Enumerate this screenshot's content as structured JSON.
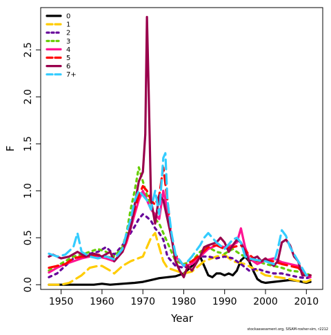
{
  "chart_data": {
    "type": "line",
    "title": "",
    "xlabel": "Year",
    "ylabel": "F",
    "xlim": [
      1945,
      2014
    ],
    "ylim": [
      -0.05,
      2.95
    ],
    "xticks": [
      1950,
      1960,
      1970,
      1980,
      1990,
      2000,
      2010
    ],
    "yticks": [
      0.0,
      0.5,
      1.0,
      1.5,
      2.0,
      2.5
    ],
    "ytick_labels": [
      "0.0",
      "0.5",
      "1.0",
      "1.5",
      "2.0",
      "2.5"
    ],
    "legend_position": "top-left",
    "grid": false,
    "series": [
      {
        "name": "0",
        "color": "#000000",
        "dash": "solid",
        "x": [
          1947,
          1950,
          1955,
          1958,
          1960,
          1962,
          1965,
          1968,
          1970,
          1972,
          1974,
          1976,
          1978,
          1980,
          1982,
          1984,
          1985,
          1986,
          1987,
          1988,
          1989,
          1990,
          1991,
          1992,
          1993,
          1994,
          1995,
          1996,
          1997,
          1998,
          1999,
          2000,
          2002,
          2004,
          2006,
          2008,
          2010,
          2011
        ],
        "y": [
          0.0,
          0.0,
          0.0,
          0.0,
          0.01,
          0.0,
          0.01,
          0.02,
          0.03,
          0.05,
          0.07,
          0.08,
          0.09,
          0.12,
          0.2,
          0.3,
          0.2,
          0.1,
          0.08,
          0.12,
          0.12,
          0.1,
          0.12,
          0.1,
          0.15,
          0.26,
          0.3,
          0.25,
          0.15,
          0.06,
          0.03,
          0.02,
          0.03,
          0.04,
          0.05,
          0.04,
          0.02,
          0.03
        ]
      },
      {
        "name": "1",
        "color": "#ffcc00",
        "dash": "dashed",
        "x": [
          1947,
          1950,
          1952,
          1955,
          1957,
          1959,
          1960,
          1962,
          1963,
          1965,
          1967,
          1970,
          1972,
          1973,
          1974,
          1975,
          1976,
          1978,
          1980,
          1982,
          1985,
          1988,
          1990,
          1992,
          1995,
          1998,
          2000,
          2003,
          2006,
          2008,
          2010,
          2011
        ],
        "y": [
          0.0,
          0.0,
          0.02,
          0.1,
          0.18,
          0.2,
          0.2,
          0.15,
          0.12,
          0.2,
          0.25,
          0.3,
          0.5,
          0.55,
          0.4,
          0.25,
          0.18,
          0.15,
          0.12,
          0.14,
          0.25,
          0.3,
          0.32,
          0.25,
          0.22,
          0.15,
          0.1,
          0.08,
          0.06,
          0.04,
          0.03,
          0.05
        ]
      },
      {
        "name": "2",
        "color": "#660099",
        "dash": "dotted",
        "x": [
          1947,
          1949,
          1951,
          1953,
          1955,
          1957,
          1959,
          1961,
          1963,
          1965,
          1967,
          1968,
          1969,
          1970,
          1971,
          1972,
          1973,
          1974,
          1975,
          1976,
          1977,
          1978,
          1980,
          1982,
          1984,
          1986,
          1988,
          1990,
          1992,
          1994,
          1996,
          1998,
          2000,
          2002,
          2004,
          2006,
          2008,
          2010,
          2011
        ],
        "y": [
          0.08,
          0.12,
          0.2,
          0.28,
          0.3,
          0.33,
          0.35,
          0.4,
          0.32,
          0.42,
          0.55,
          0.62,
          0.7,
          0.75,
          0.72,
          0.68,
          0.6,
          0.55,
          0.48,
          0.3,
          0.25,
          0.2,
          0.18,
          0.22,
          0.3,
          0.3,
          0.28,
          0.3,
          0.28,
          0.22,
          0.15,
          0.17,
          0.14,
          0.12,
          0.12,
          0.1,
          0.08,
          0.07,
          0.08
        ]
      },
      {
        "name": "3",
        "color": "#66cc00",
        "dash": "dotted",
        "x": [
          1947,
          1949,
          1951,
          1953,
          1955,
          1957,
          1959,
          1961,
          1963,
          1965,
          1966,
          1967,
          1968,
          1969,
          1970,
          1971,
          1972,
          1973,
          1974,
          1975,
          1976,
          1977,
          1978,
          1980,
          1982,
          1984,
          1986,
          1988,
          1990,
          1992,
          1994,
          1996,
          1998,
          2000,
          2002,
          2004,
          2006,
          2008,
          2010,
          2011
        ],
        "y": [
          0.15,
          0.2,
          0.25,
          0.3,
          0.32,
          0.35,
          0.38,
          0.35,
          0.3,
          0.4,
          0.55,
          0.8,
          1.0,
          1.25,
          1.1,
          0.95,
          0.85,
          0.7,
          0.65,
          0.55,
          0.45,
          0.35,
          0.25,
          0.22,
          0.25,
          0.35,
          0.4,
          0.35,
          0.33,
          0.38,
          0.32,
          0.28,
          0.25,
          0.22,
          0.2,
          0.18,
          0.15,
          0.14,
          0.12,
          0.1
        ]
      },
      {
        "name": "4",
        "color": "#ff1493",
        "dash": "solid",
        "x": [
          1947,
          1949,
          1951,
          1953,
          1955,
          1957,
          1959,
          1961,
          1963,
          1965,
          1966,
          1967,
          1968,
          1969,
          1970,
          1971,
          1972,
          1973,
          1974,
          1975,
          1976,
          1977,
          1978,
          1980,
          1982,
          1984,
          1986,
          1988,
          1990,
          1992,
          1993,
          1994,
          1995,
          1996,
          1998,
          2000,
          2002,
          2004,
          2006,
          2008,
          2009,
          2010,
          2011
        ],
        "y": [
          0.13,
          0.18,
          0.22,
          0.25,
          0.28,
          0.3,
          0.3,
          0.28,
          0.25,
          0.35,
          0.45,
          0.6,
          0.75,
          0.9,
          1.0,
          0.9,
          0.8,
          0.75,
          0.7,
          1.0,
          0.8,
          0.5,
          0.3,
          0.2,
          0.22,
          0.3,
          0.38,
          0.42,
          0.4,
          0.42,
          0.45,
          0.6,
          0.4,
          0.28,
          0.22,
          0.26,
          0.28,
          0.24,
          0.22,
          0.2,
          0.15,
          0.1,
          0.08
        ]
      },
      {
        "name": "5",
        "color": "#ff0000",
        "dash": "dashed",
        "x": [
          1947,
          1949,
          1951,
          1953,
          1955,
          1957,
          1959,
          1961,
          1963,
          1965,
          1966,
          1967,
          1968,
          1969,
          1970,
          1971,
          1972,
          1973,
          1974,
          1975,
          1976,
          1977,
          1978,
          1980,
          1982,
          1984,
          1986,
          1988,
          1990,
          1992,
          1994,
          1996,
          1998,
          2000,
          2002,
          2004,
          2006,
          2008,
          2010,
          2011
        ],
        "y": [
          0.18,
          0.2,
          0.22,
          0.28,
          0.3,
          0.3,
          0.32,
          0.3,
          0.28,
          0.35,
          0.48,
          0.62,
          0.8,
          0.95,
          1.05,
          1.0,
          0.9,
          0.85,
          0.95,
          1.25,
          0.9,
          0.5,
          0.32,
          0.2,
          0.25,
          0.32,
          0.4,
          0.42,
          0.38,
          0.4,
          0.42,
          0.32,
          0.25,
          0.26,
          0.25,
          0.22,
          0.2,
          0.18,
          0.1,
          0.1
        ]
      },
      {
        "name": "6",
        "color": "#99004c",
        "dash": "solid",
        "x": [
          1947,
          1948,
          1950,
          1952,
          1954,
          1956,
          1958,
          1960,
          1962,
          1963,
          1965,
          1966,
          1967,
          1968,
          1969,
          1970,
          1970.6,
          1971,
          1971.4,
          1972,
          1973,
          1974,
          1975,
          1976,
          1977,
          1978,
          1979,
          1980,
          1981,
          1982,
          1984,
          1985,
          1986,
          1988,
          1989,
          1990,
          1991,
          1992,
          1993,
          1994,
          1995,
          1996,
          1997,
          1998,
          1999,
          2000,
          2002,
          2003,
          2004,
          2005,
          2006,
          2007,
          2008,
          2009,
          2010,
          2011
        ],
        "y": [
          0.3,
          0.32,
          0.28,
          0.3,
          0.35,
          0.3,
          0.33,
          0.3,
          0.35,
          0.25,
          0.35,
          0.5,
          0.6,
          0.85,
          1.1,
          1.2,
          1.6,
          2.85,
          2.1,
          0.9,
          0.65,
          0.95,
          0.9,
          0.7,
          0.5,
          0.25,
          0.15,
          0.08,
          0.2,
          0.15,
          0.3,
          0.4,
          0.42,
          0.45,
          0.5,
          0.45,
          0.35,
          0.42,
          0.48,
          0.45,
          0.35,
          0.25,
          0.28,
          0.3,
          0.25,
          0.28,
          0.2,
          0.25,
          0.45,
          0.48,
          0.42,
          0.3,
          0.25,
          0.1,
          0.1,
          0.1
        ]
      },
      {
        "name": "7+",
        "color": "#33ccff",
        "dash": "dashed",
        "x": [
          1947,
          1949,
          1951,
          1953,
          1954,
          1955,
          1957,
          1959,
          1961,
          1963,
          1965,
          1966,
          1967,
          1968,
          1969,
          1970,
          1971,
          1972,
          1973,
          1974,
          1975,
          1975.5,
          1976,
          1977,
          1978,
          1980,
          1982,
          1984,
          1985,
          1986,
          1988,
          1990,
          1992,
          1993,
          1994,
          1995,
          1996,
          1998,
          2000,
          2002,
          2003,
          2004,
          2005,
          2006,
          2008,
          2010,
          2011
        ],
        "y": [
          0.33,
          0.3,
          0.32,
          0.4,
          0.55,
          0.35,
          0.3,
          0.28,
          0.3,
          0.27,
          0.38,
          0.55,
          0.7,
          0.9,
          1.0,
          0.95,
          0.9,
          0.8,
          1.0,
          0.75,
          1.35,
          1.4,
          0.9,
          0.55,
          0.32,
          0.2,
          0.3,
          0.42,
          0.5,
          0.55,
          0.45,
          0.38,
          0.48,
          0.5,
          0.45,
          0.3,
          0.28,
          0.26,
          0.25,
          0.22,
          0.38,
          0.58,
          0.52,
          0.4,
          0.25,
          0.1,
          0.1
        ]
      }
    ]
  },
  "footnote": "stockassessment.org, SISAM-rosher-sim, r2212"
}
